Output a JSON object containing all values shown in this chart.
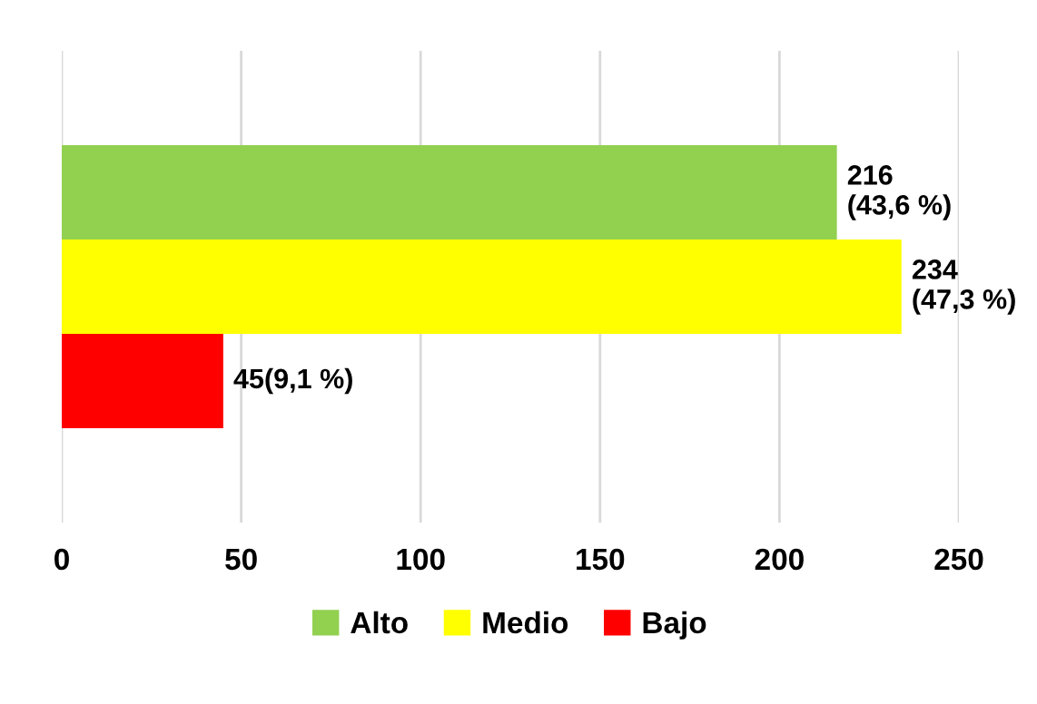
{
  "chart_data": {
    "type": "bar",
    "orientation": "horizontal",
    "categories": [
      null
    ],
    "series": [
      {
        "name": "Alto",
        "color": "#92d050",
        "values": [
          216
        ],
        "value_labels": [
          "216\n(43,6 %)"
        ]
      },
      {
        "name": "Medio",
        "color": "#ffff00",
        "values": [
          234
        ],
        "value_labels": [
          "234\n(47,3 %)"
        ]
      },
      {
        "name": "Bajo",
        "color": "#ff0000",
        "values": [
          45
        ],
        "value_labels": [
          "45(9,1 %)"
        ]
      }
    ],
    "xlim": [
      0,
      250
    ],
    "xticks": [
      0,
      50,
      100,
      150,
      200,
      250
    ],
    "grid": "x",
    "legend": "bottom",
    "tick_labels": "x"
  }
}
